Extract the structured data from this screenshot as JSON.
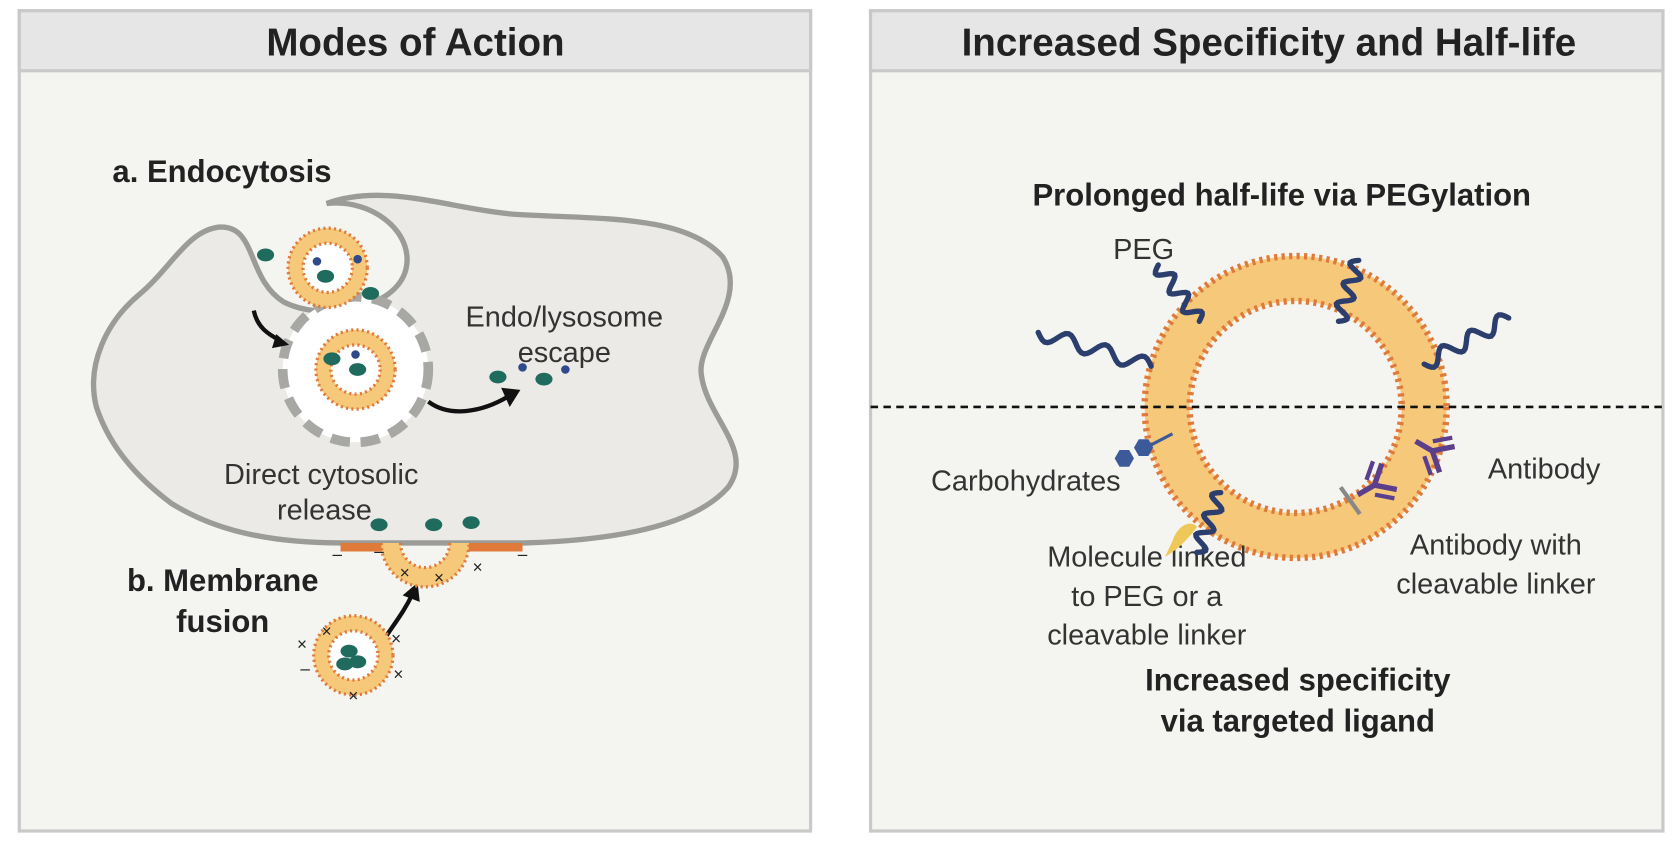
{
  "panels": [
    {
      "title": "Modes of Action",
      "labels": {
        "endocytosis": "a. Endocytosis",
        "escape": [
          "Endo/lysosome",
          "escape"
        ],
        "cytosolic": [
          "Direct cytosolic",
          "release"
        ],
        "fusion": [
          "b. Membrane",
          "fusion"
        ]
      }
    },
    {
      "title": "Increased Specificity and Half-life",
      "labels": {
        "pegylation": "Prolonged half-life via PEGylation",
        "peg": "PEG",
        "carbohydrates": "Carbohydrates",
        "antibody": "Antibody",
        "antibody_linker": [
          "Antibody with",
          "cleavable linker"
        ],
        "molecule": [
          "Molecule linked",
          "to PEG or a",
          "cleavable linker"
        ],
        "specificity": [
          "Increased specificity",
          "via targeted ligand"
        ]
      }
    }
  ]
}
